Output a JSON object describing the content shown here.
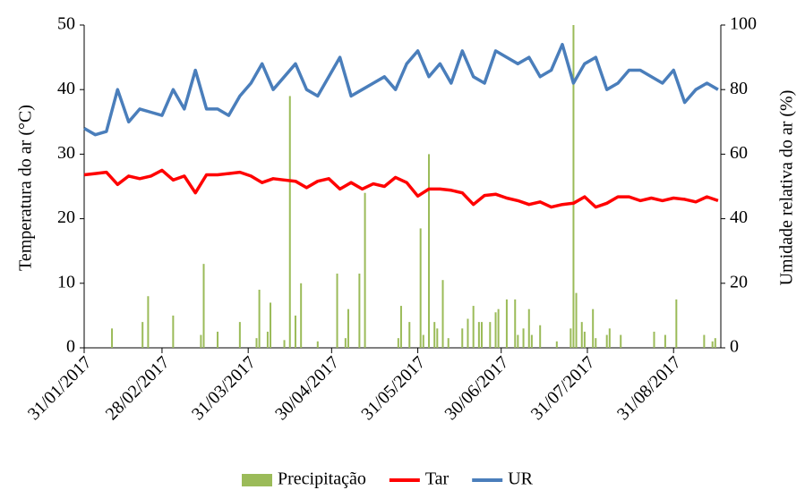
{
  "chart_data": {
    "type": "bar-line",
    "y_label": "Temperatura do ar (°C)",
    "y2_label": "Umidade relativa do ar (%)",
    "xlim": [
      "2017-01-31",
      "2017-09-17"
    ],
    "xticks": [
      {
        "value": "2017-01-31",
        "label": "31/01/2017"
      },
      {
        "value": "2017-02-28",
        "label": "28/02/2017"
      },
      {
        "value": "2017-03-31",
        "label": "31/03/2017"
      },
      {
        "value": "2017-04-30",
        "label": "30/04/2017"
      },
      {
        "value": "2017-05-31",
        "label": "31/05/2017"
      },
      {
        "value": "2017-06-30",
        "label": "30/06/2017"
      },
      {
        "value": "2017-07-31",
        "label": "31/07/2017"
      },
      {
        "value": "2017-08-31",
        "label": "31/08/2017"
      }
    ],
    "ylim": [
      0,
      50
    ],
    "yticks": [
      0,
      10,
      20,
      30,
      40,
      50
    ],
    "y2lim": [
      0,
      100
    ],
    "y2ticks": [
      0,
      20,
      40,
      60,
      80,
      100
    ],
    "legend": "bottom",
    "series": [
      {
        "name": "Precipitação",
        "type": "bar",
        "color": "#9bbb59",
        "x": [
          "2017-02-10",
          "2017-02-21",
          "2017-02-23",
          "2017-03-04",
          "2017-03-14",
          "2017-03-15",
          "2017-03-20",
          "2017-03-28",
          "2017-04-03",
          "2017-04-04",
          "2017-04-07",
          "2017-04-08",
          "2017-04-13",
          "2017-04-15",
          "2017-04-17",
          "2017-04-19",
          "2017-04-25",
          "2017-05-02",
          "2017-05-05",
          "2017-05-06",
          "2017-05-10",
          "2017-05-12",
          "2017-05-24",
          "2017-05-25",
          "2017-05-28",
          "2017-06-01",
          "2017-06-02",
          "2017-06-04",
          "2017-06-06",
          "2017-06-07",
          "2017-06-09",
          "2017-06-11",
          "2017-06-16",
          "2017-06-18",
          "2017-06-20",
          "2017-06-22",
          "2017-06-23",
          "2017-06-26",
          "2017-06-28",
          "2017-06-29",
          "2017-07-02",
          "2017-07-05",
          "2017-07-06",
          "2017-07-08",
          "2017-07-10",
          "2017-07-11",
          "2017-07-14",
          "2017-07-20",
          "2017-07-25",
          "2017-07-26",
          "2017-07-27",
          "2017-07-29",
          "2017-07-30",
          "2017-08-02",
          "2017-08-03",
          "2017-08-07",
          "2017-08-08",
          "2017-08-12",
          "2017-08-24",
          "2017-08-28",
          "2017-09-01",
          "2017-09-11",
          "2017-09-14",
          "2017-09-15"
        ],
        "values": [
          3,
          4,
          8,
          5,
          2,
          13,
          2.5,
          4,
          1.5,
          9,
          2.5,
          7,
          1.2,
          39,
          5,
          10,
          1,
          11.5,
          1.5,
          6,
          11.5,
          24,
          1.5,
          6.5,
          4,
          18.5,
          2,
          30,
          4,
          3,
          10.5,
          1.5,
          3,
          4.5,
          6.5,
          4,
          4,
          4,
          5.5,
          6,
          7.5,
          7.5,
          2,
          3,
          6,
          2,
          3.5,
          1,
          3,
          50,
          8.5,
          4,
          2.5,
          6,
          1.5,
          2,
          3,
          2,
          2.5,
          2,
          7.5,
          2,
          1,
          1.5
        ]
      },
      {
        "name": "Tar",
        "type": "line",
        "color": "#ff0000",
        "x": [
          "2017-01-31",
          "2017-02-04",
          "2017-02-08",
          "2017-02-12",
          "2017-02-16",
          "2017-02-20",
          "2017-02-24",
          "2017-02-28",
          "2017-03-04",
          "2017-03-08",
          "2017-03-12",
          "2017-03-16",
          "2017-03-20",
          "2017-03-24",
          "2017-03-28",
          "2017-04-01",
          "2017-04-05",
          "2017-04-09",
          "2017-04-13",
          "2017-04-17",
          "2017-04-21",
          "2017-04-25",
          "2017-04-29",
          "2017-05-03",
          "2017-05-07",
          "2017-05-11",
          "2017-05-15",
          "2017-05-19",
          "2017-05-23",
          "2017-05-27",
          "2017-05-31",
          "2017-06-04",
          "2017-06-08",
          "2017-06-12",
          "2017-06-16",
          "2017-06-20",
          "2017-06-24",
          "2017-06-28",
          "2017-07-02",
          "2017-07-06",
          "2017-07-10",
          "2017-07-14",
          "2017-07-18",
          "2017-07-22",
          "2017-07-26",
          "2017-07-30",
          "2017-08-03",
          "2017-08-07",
          "2017-08-11",
          "2017-08-15",
          "2017-08-19",
          "2017-08-23",
          "2017-08-27",
          "2017-08-31",
          "2017-09-04",
          "2017-09-08",
          "2017-09-12",
          "2017-09-16"
        ],
        "values": [
          26.8,
          27.0,
          27.2,
          25.3,
          26.6,
          26.2,
          26.6,
          27.5,
          26.0,
          26.6,
          24.0,
          26.8,
          26.8,
          27.0,
          27.2,
          26.6,
          25.6,
          26.2,
          26.0,
          25.8,
          24.8,
          25.8,
          26.2,
          24.6,
          25.6,
          24.6,
          25.4,
          25.0,
          26.4,
          25.6,
          23.5,
          24.6,
          24.6,
          24.4,
          24.0,
          22.2,
          23.6,
          23.8,
          23.2,
          22.8,
          22.2,
          22.6,
          21.8,
          22.2,
          22.4,
          23.4,
          21.8,
          22.4,
          23.4,
          23.4,
          22.8,
          23.2,
          22.8,
          23.2,
          23.0,
          22.6,
          23.4,
          22.8
        ]
      },
      {
        "name": "UR",
        "type": "line",
        "axis": "y2",
        "color": "#4a7ebb",
        "x": [
          "2017-01-31",
          "2017-02-04",
          "2017-02-08",
          "2017-02-12",
          "2017-02-16",
          "2017-02-20",
          "2017-02-24",
          "2017-02-28",
          "2017-03-04",
          "2017-03-08",
          "2017-03-12",
          "2017-03-16",
          "2017-03-20",
          "2017-03-24",
          "2017-03-28",
          "2017-04-01",
          "2017-04-05",
          "2017-04-09",
          "2017-04-13",
          "2017-04-17",
          "2017-04-21",
          "2017-04-25",
          "2017-04-29",
          "2017-05-03",
          "2017-05-07",
          "2017-05-11",
          "2017-05-15",
          "2017-05-19",
          "2017-05-23",
          "2017-05-27",
          "2017-05-31",
          "2017-06-04",
          "2017-06-08",
          "2017-06-12",
          "2017-06-16",
          "2017-06-20",
          "2017-06-24",
          "2017-06-28",
          "2017-07-02",
          "2017-07-06",
          "2017-07-10",
          "2017-07-14",
          "2017-07-18",
          "2017-07-22",
          "2017-07-26",
          "2017-07-30",
          "2017-08-03",
          "2017-08-07",
          "2017-08-11",
          "2017-08-15",
          "2017-08-19",
          "2017-08-23",
          "2017-08-27",
          "2017-08-31",
          "2017-09-04",
          "2017-09-08",
          "2017-09-12",
          "2017-09-16"
        ],
        "values": [
          68,
          66,
          67,
          80,
          70,
          74,
          73,
          72,
          80,
          74,
          86,
          74,
          74,
          72,
          78,
          82,
          88,
          80,
          84,
          88,
          80,
          78,
          84,
          90,
          78,
          80,
          82,
          84,
          80,
          88,
          92,
          84,
          88,
          82,
          92,
          84,
          82,
          92,
          90,
          88,
          90,
          84,
          86,
          94,
          82,
          88,
          90,
          80,
          82,
          86,
          86,
          84,
          82,
          86,
          76,
          80,
          82,
          80
        ]
      }
    ]
  }
}
